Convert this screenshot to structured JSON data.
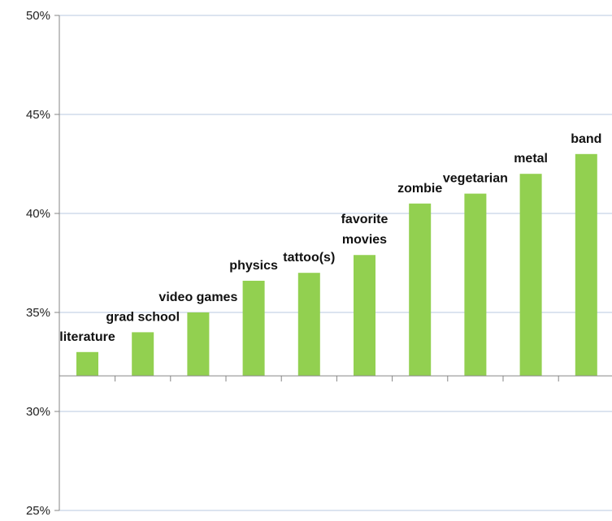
{
  "chart_data": {
    "type": "bar",
    "title": "",
    "xlabel": "",
    "ylabel": "",
    "ylim": [
      25,
      50
    ],
    "baseline": 31.8,
    "y_ticks": [
      25,
      30,
      35,
      40,
      45,
      50
    ],
    "y_tick_labels": [
      "25%",
      "30%",
      "35%",
      "40%",
      "45%",
      "50%"
    ],
    "grid": true,
    "legend": "none",
    "categories": [
      "literature",
      "grad school",
      "video games",
      "physics",
      "tattoo(s)",
      "favorite movies",
      "zombie",
      "vegetarian",
      "metal",
      "band"
    ],
    "label_lines": [
      [
        "literature"
      ],
      [
        "grad school"
      ],
      [
        "video games"
      ],
      [
        "physics"
      ],
      [
        "tattoo(s)"
      ],
      [
        "favorite",
        "movies"
      ],
      [
        "zombie"
      ],
      [
        "vegetarian"
      ],
      [
        "metal"
      ],
      [
        "band"
      ]
    ],
    "values": [
      33.0,
      34.0,
      35.0,
      36.6,
      37.0,
      37.9,
      40.5,
      41.0,
      42.0,
      43.0
    ],
    "colors": {
      "bar": "#92d050",
      "grid": "#b8c8e0",
      "axis": "#868686"
    }
  }
}
